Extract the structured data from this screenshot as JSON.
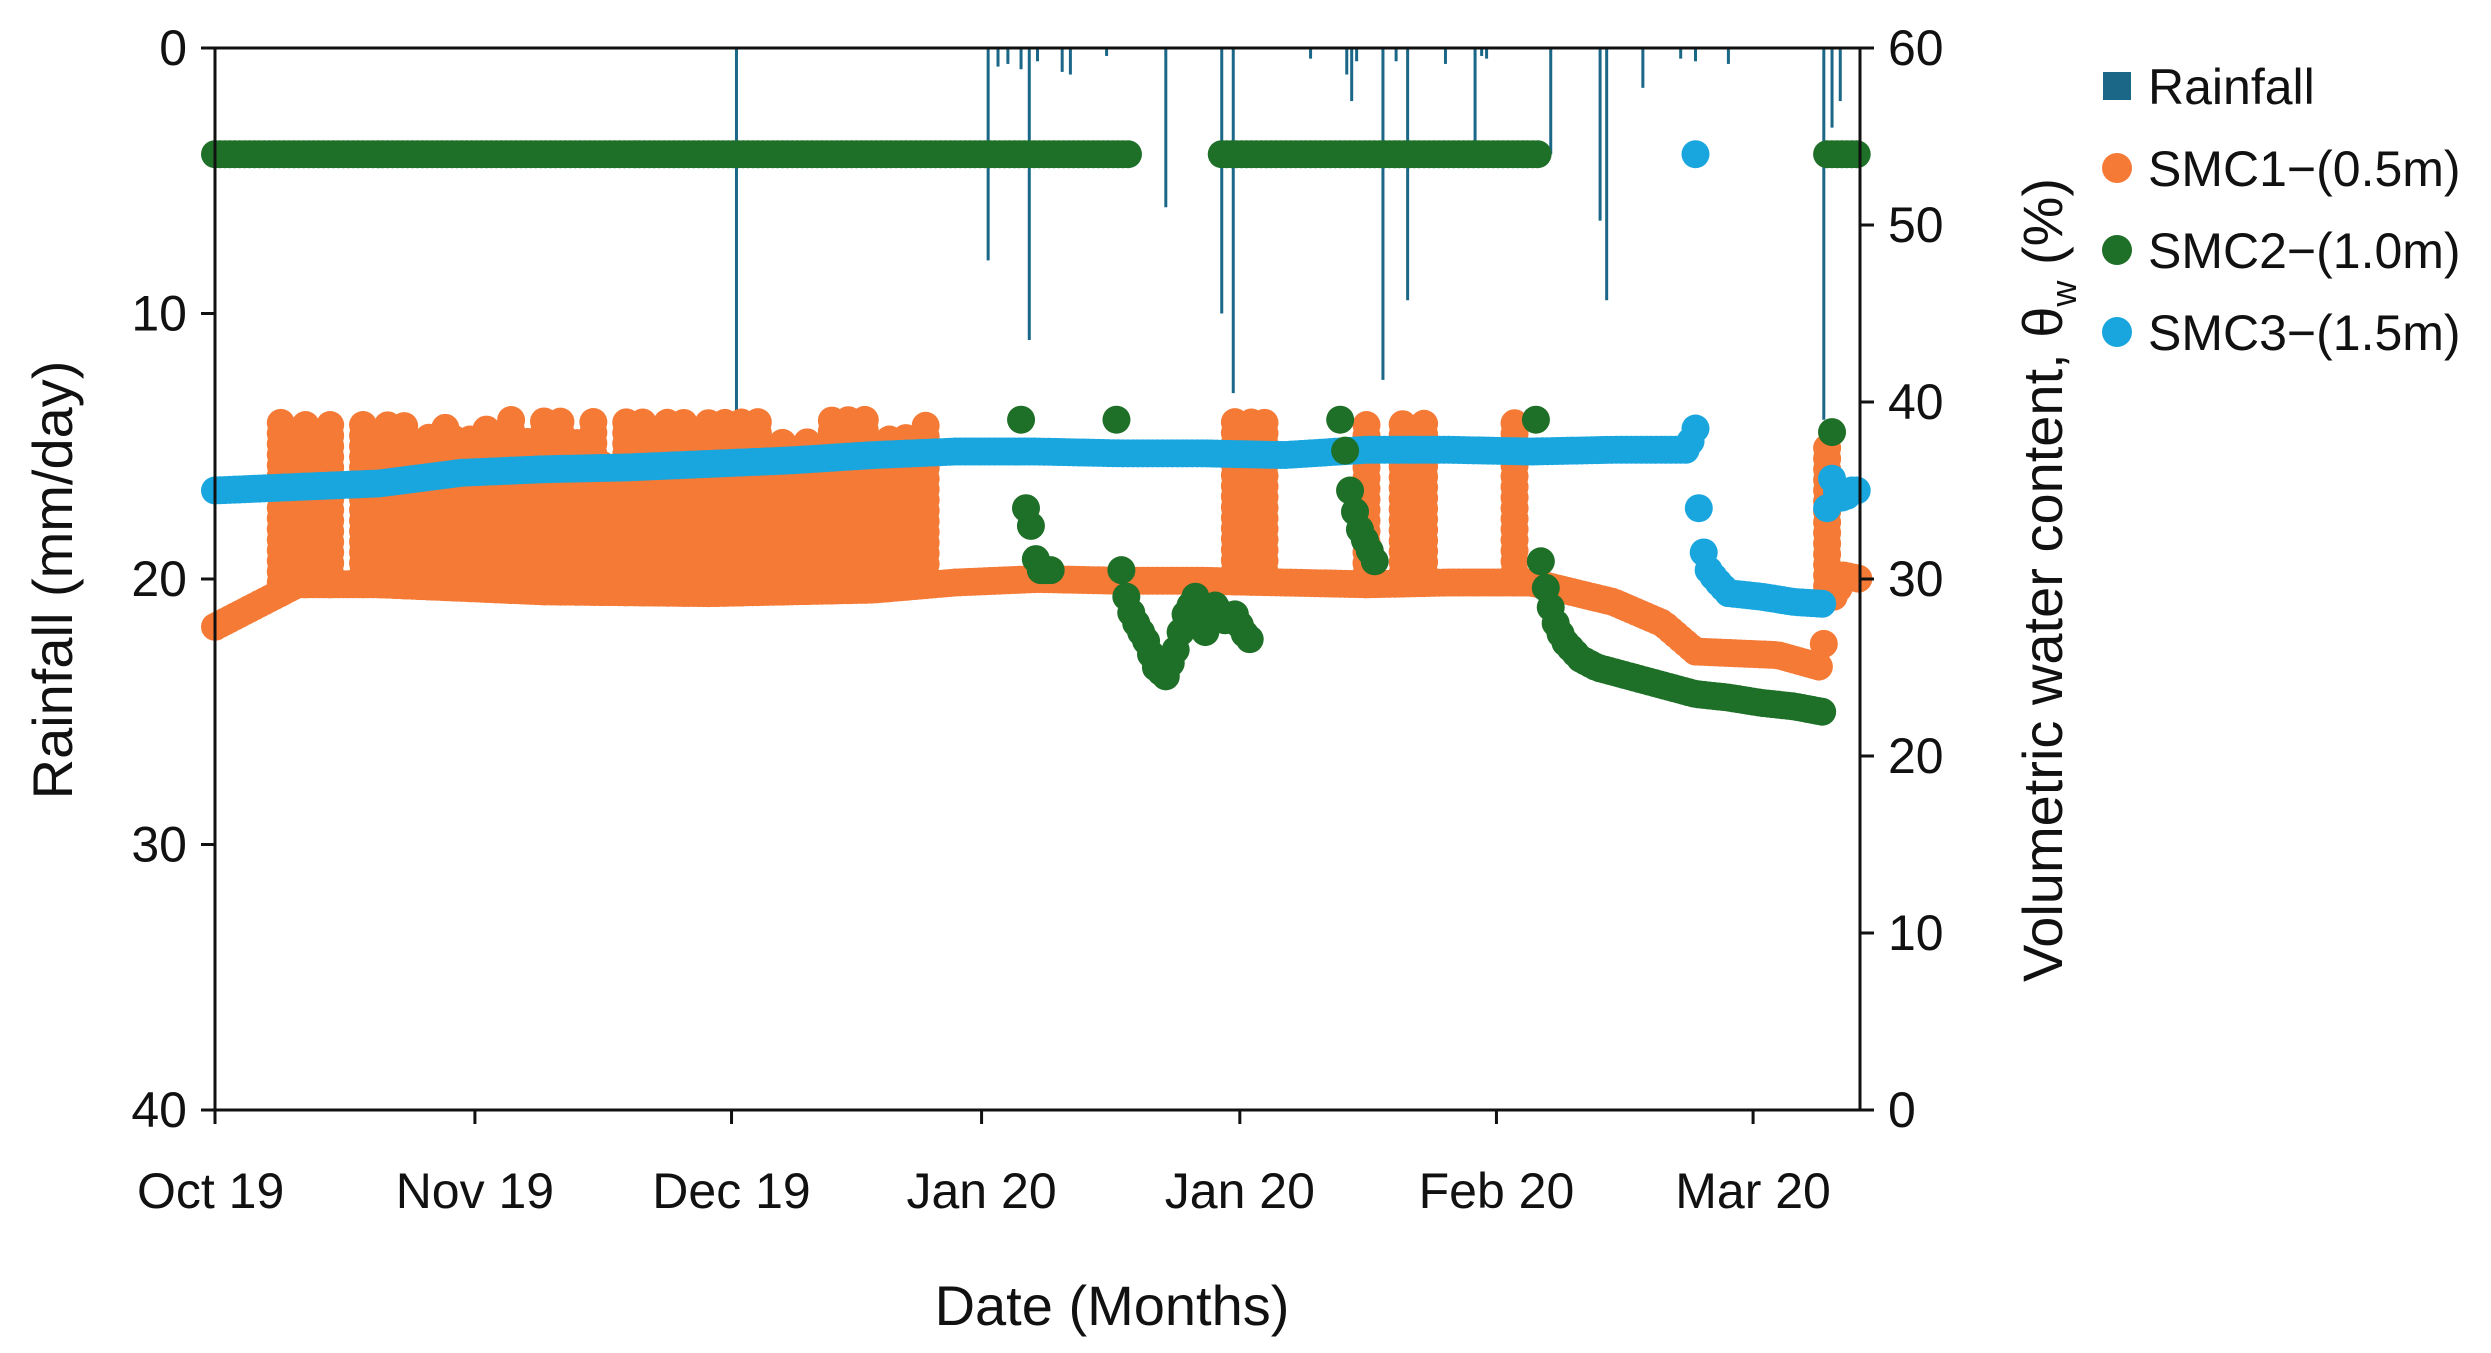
{
  "chart_data": {
    "type": "line",
    "title": "",
    "xlabel": "Date (Months)",
    "ylabel_left": "Rainfall  (mm/day)",
    "ylabel_right_main": "Volumetric water content, θ",
    "ylabel_right_sub": "w",
    "ylabel_right_tail": " (%)",
    "x_tick_labels": [
      "Oct  19",
      "Nov  19",
      "Dec  19",
      "Jan  20",
      "Jan  20",
      "Feb  20",
      "Mar  20"
    ],
    "x_tick_positions": [
      0.0,
      0.158,
      0.314,
      0.466,
      0.623,
      0.779,
      0.935
    ],
    "x_domain": [
      0,
      1
    ],
    "y_left": {
      "range": [
        0,
        40
      ],
      "inverted": true,
      "ticks": [
        0,
        10,
        20,
        30,
        40
      ]
    },
    "y_right": {
      "range": [
        0,
        60
      ],
      "ticks": [
        0,
        10,
        20,
        30,
        40,
        50,
        60
      ]
    },
    "legend": [
      {
        "label": "Rainfall",
        "marker": "square",
        "color": "#1B6788"
      },
      {
        "label": "SMC1−(0.5m)",
        "marker": "circle",
        "color": "#F47A36"
      },
      {
        "label": "SMC2−(1.0m)",
        "marker": "circle",
        "color": "#1E6F27"
      },
      {
        "label": "SMC3−(1.5m)",
        "marker": "circle",
        "color": "#19A6DE"
      }
    ],
    "series": [
      {
        "name": "Rainfall",
        "axis": "left",
        "kind": "bars",
        "color": "#1B6788",
        "x": [
          0.317,
          0.47,
          0.476,
          0.482,
          0.49,
          0.495,
          0.5,
          0.515,
          0.52,
          0.542,
          0.578,
          0.612,
          0.619,
          0.666,
          0.688,
          0.691,
          0.694,
          0.71,
          0.718,
          0.725,
          0.748,
          0.766,
          0.77,
          0.773,
          0.812,
          0.842,
          0.846,
          0.868,
          0.891,
          0.9,
          0.92,
          0.978,
          0.983,
          0.988
        ],
        "values": [
          14,
          8,
          0.7,
          0.6,
          0.8,
          11,
          0.5,
          0.9,
          1,
          0.3,
          6,
          10,
          13,
          0.4,
          1,
          2,
          0.5,
          12.5,
          0.5,
          9.5,
          0.6,
          3.5,
          0.3,
          0.4,
          4,
          6.5,
          9.5,
          1.5,
          0.4,
          0.5,
          0.6,
          14,
          3,
          2
        ]
      },
      {
        "name": "SMC1−(0.5m)",
        "axis": "right",
        "kind": "markers",
        "color": "#F47A36",
        "baseline": {
          "x": [
            0,
            0.05,
            0.1,
            0.2,
            0.3,
            0.4,
            0.45,
            0.5,
            0.55,
            0.6,
            0.65,
            0.7,
            0.75,
            0.8,
            0.81,
            0.85,
            0.88,
            0.9,
            0.95,
            0.977,
            0.98,
            0.985,
            0.99,
            1.0
          ],
          "y": [
            27.3,
            29.7,
            29.7,
            29.3,
            29.2,
            29.4,
            29.8,
            30.0,
            29.9,
            29.9,
            29.8,
            29.7,
            29.8,
            29.8,
            29.6,
            28.7,
            27.5,
            25.9,
            25.7,
            25.0,
            29.0,
            29.0,
            30.2,
            30.0
          ]
        },
        "spikes": {
          "x": [
            0.04,
            0.055,
            0.07,
            0.09,
            0.1,
            0.105,
            0.11,
            0.115,
            0.125,
            0.13,
            0.14,
            0.145,
            0.155,
            0.165,
            0.17,
            0.175,
            0.18,
            0.19,
            0.2,
            0.21,
            0.22,
            0.23,
            0.235,
            0.25,
            0.26,
            0.275,
            0.285,
            0.3,
            0.305,
            0.31,
            0.32,
            0.33,
            0.345,
            0.36,
            0.375,
            0.385,
            0.395,
            0.41,
            0.42,
            0.432,
            0.62,
            0.63,
            0.638,
            0.7,
            0.722,
            0.735,
            0.79,
            0.98
          ],
          "high": [
            39,
            39,
            39,
            39,
            38,
            39,
            38,
            39,
            38,
            38,
            39,
            38,
            38,
            39,
            37,
            38,
            39,
            38,
            39,
            39,
            38,
            39,
            37,
            39,
            39,
            39,
            39,
            39,
            38,
            39,
            39,
            39,
            38,
            38,
            39,
            39,
            39,
            38,
            38,
            39,
            39,
            39,
            39,
            39,
            39,
            39,
            39,
            38
          ]
        }
      },
      {
        "name": "SMC2−(1.0m)",
        "axis": "right",
        "kind": "markers",
        "color": "#1E6F27",
        "segments": [
          {
            "x": [
              0.0,
              0.138,
              0.28,
              0.42,
              0.555
            ],
            "y": [
              54,
              54,
              54,
              54,
              54
            ]
          },
          {
            "x": [
              0.612,
              0.69,
              0.77,
              0.805
            ],
            "y": [
              54,
              54,
              54,
              54
            ]
          },
          {
            "x": [
              0.98,
              1.0
            ],
            "y": [
              54,
              54
            ]
          },
          {
            "x": [
              0.49,
              0.493,
              0.496,
              0.5,
              0.505,
              0.51
            ],
            "y": [
              39,
              34,
              33,
              30.5,
              30.5,
              30.5
            ]
          },
          {
            "x": [
              0.548,
              0.551,
              0.555,
              0.56,
              0.566,
              0.572,
              0.578,
              0.584,
              0.59,
              0.596,
              0.602,
              0.608,
              0.612,
              0.615,
              0.62,
              0.625,
              0.63
            ],
            "y": [
              39,
              30.5,
              28.5,
              27.5,
              26.5,
              25,
              24.5,
              26,
              28,
              29,
              27,
              28.5,
              28,
              27.5,
              28,
              27,
              26.5
            ]
          },
          {
            "x": [
              0.684,
              0.686,
              0.69,
              0.695,
              0.7,
              0.705
            ],
            "y": [
              39,
              38,
              35,
              33,
              32,
              31
            ]
          },
          {
            "x": [
              0.803,
              0.806,
              0.81,
              0.815,
              0.82,
              0.83,
              0.84,
              0.86,
              0.88,
              0.9,
              0.92,
              0.94,
              0.96,
              0.977
            ],
            "y": [
              39,
              31,
              29,
              27.5,
              26.5,
              25.5,
              25,
              24.5,
              24,
              23.5,
              23.3,
              23,
              22.8,
              22.5
            ]
          },
          {
            "x": [
              0.983
            ],
            "y": [
              38.3
            ]
          }
        ]
      },
      {
        "name": "SMC3−(1.5m)",
        "axis": "right",
        "kind": "markers",
        "color": "#19A6DE",
        "segments": [
          {
            "x": [
              0.0,
              0.05,
              0.1,
              0.15,
              0.2,
              0.25,
              0.3,
              0.35,
              0.4,
              0.45,
              0.5,
              0.55,
              0.6,
              0.65,
              0.7,
              0.75,
              0.8,
              0.85,
              0.895,
              0.9
            ],
            "y": [
              35,
              35.2,
              35.4,
              36,
              36.2,
              36.3,
              36.5,
              36.7,
              37,
              37.2,
              37.2,
              37.1,
              37.1,
              37,
              37.3,
              37.3,
              37.2,
              37.3,
              37.3,
              38.5
            ]
          },
          {
            "x": [
              0.902,
              0.905,
              0.908,
              0.912,
              0.92,
              0.94,
              0.96,
              0.977
            ],
            "y": [
              34,
              31.5,
              30.5,
              30,
              29.2,
              29,
              28.7,
              28.6
            ]
          },
          {
            "x": [
              0.98,
              0.982,
              0.985,
              0.99,
              0.995,
              1.0
            ],
            "y": [
              34,
              36,
              35,
              34.5,
              35,
              35
            ]
          },
          {
            "x": [
              0.9
            ],
            "y": [
              54
            ]
          }
        ]
      }
    ]
  }
}
